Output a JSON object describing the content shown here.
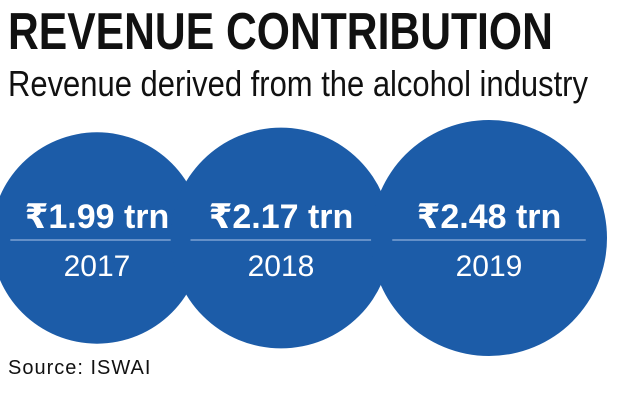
{
  "header": {
    "title": "REVENUE CONTRIBUTION",
    "subtitle": "Revenue derived from the alcohol industry"
  },
  "footer": {
    "source": "Source: ISWAI"
  },
  "colors": {
    "bubble": "#1c5ca8",
    "bubble_text": "#ffffff",
    "divider": "#8fb0da"
  },
  "chart_data": {
    "type": "bubble",
    "categories": [
      "2017",
      "2018",
      "2019"
    ],
    "values": [
      1.99,
      2.17,
      2.48
    ],
    "value_labels": [
      "₹1.99 trn",
      "₹2.17 trn",
      "₹2.48 trn"
    ],
    "unit": "trn"
  }
}
